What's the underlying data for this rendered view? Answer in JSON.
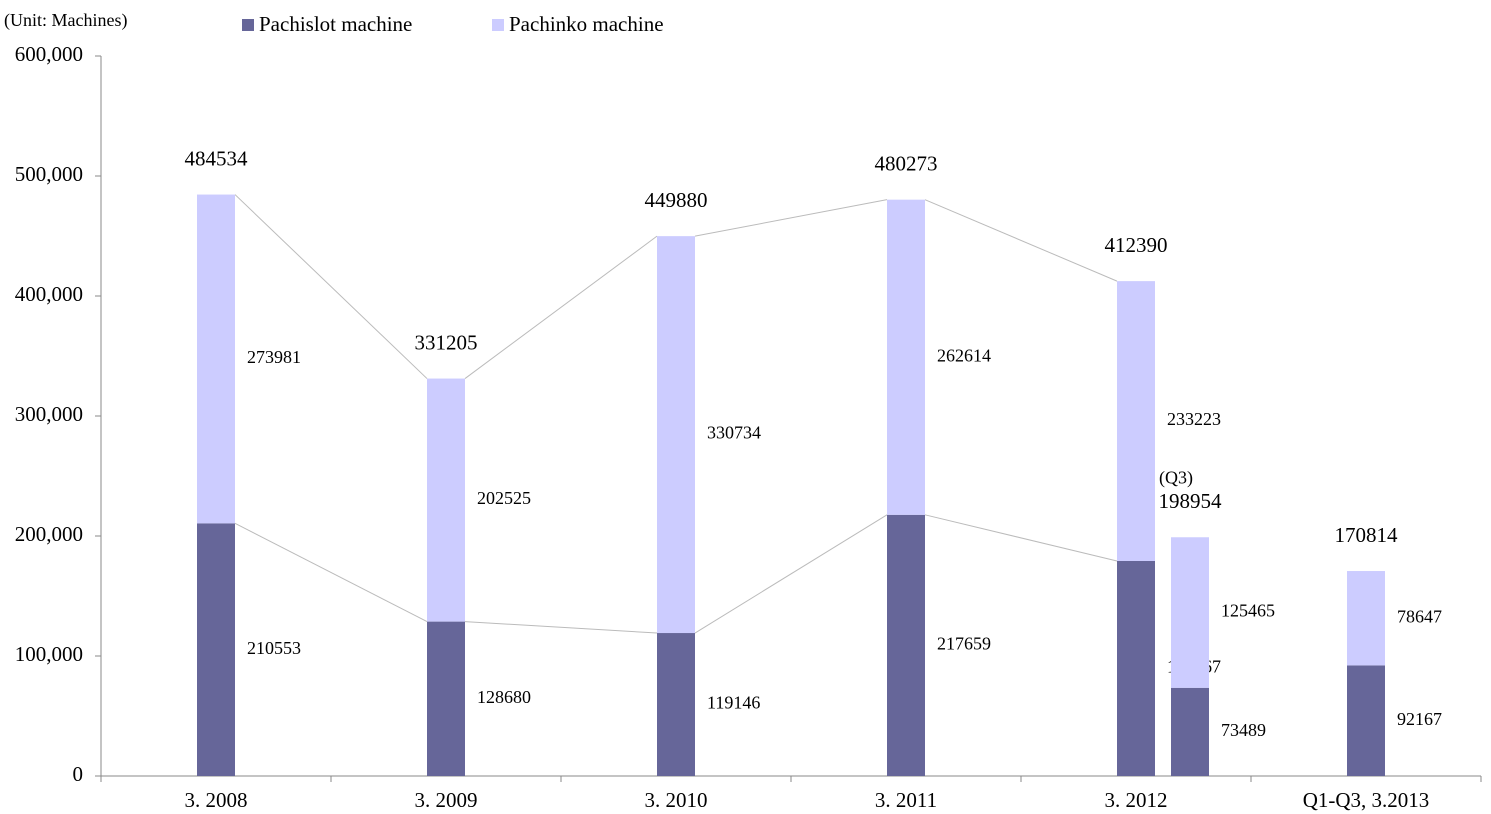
{
  "chart_data": {
    "type": "stacked_bar",
    "y_axis_label": "(Unit: Machines)",
    "categories": [
      "3. 2008",
      "3. 2009",
      "3. 2010",
      "3. 2011",
      "3. 2012",
      "Q1-Q3, 3.2013"
    ],
    "series": [
      {
        "name": "Pachislot machine",
        "color": "#666699",
        "values": [
          210553,
          128680,
          119146,
          217659,
          179167,
          92167
        ]
      },
      {
        "name": "Pachinko machine",
        "color": "#ccccff",
        "values": [
          273981,
          202525,
          330734,
          262614,
          233223,
          78647
        ]
      }
    ],
    "totals": [
      484534,
      331205,
      449880,
      480273,
      412390,
      170814
    ],
    "sub_bar": {
      "label": "(Q3)",
      "values": [
        73489,
        125465
      ],
      "total": 198954
    },
    "ylim": [
      0,
      600000
    ],
    "yticks": [
      0,
      {
        "value": 100000,
        "label": "100,000"
      },
      {
        "value": 200000,
        "label": "200,000"
      },
      {
        "value": 300000,
        "label": "300,000"
      },
      {
        "value": 400000,
        "label": "400,000"
      },
      {
        "value": 500000,
        "label": "500,000"
      },
      {
        "value": 600000,
        "label": "600,000"
      }
    ],
    "legend": "top"
  }
}
